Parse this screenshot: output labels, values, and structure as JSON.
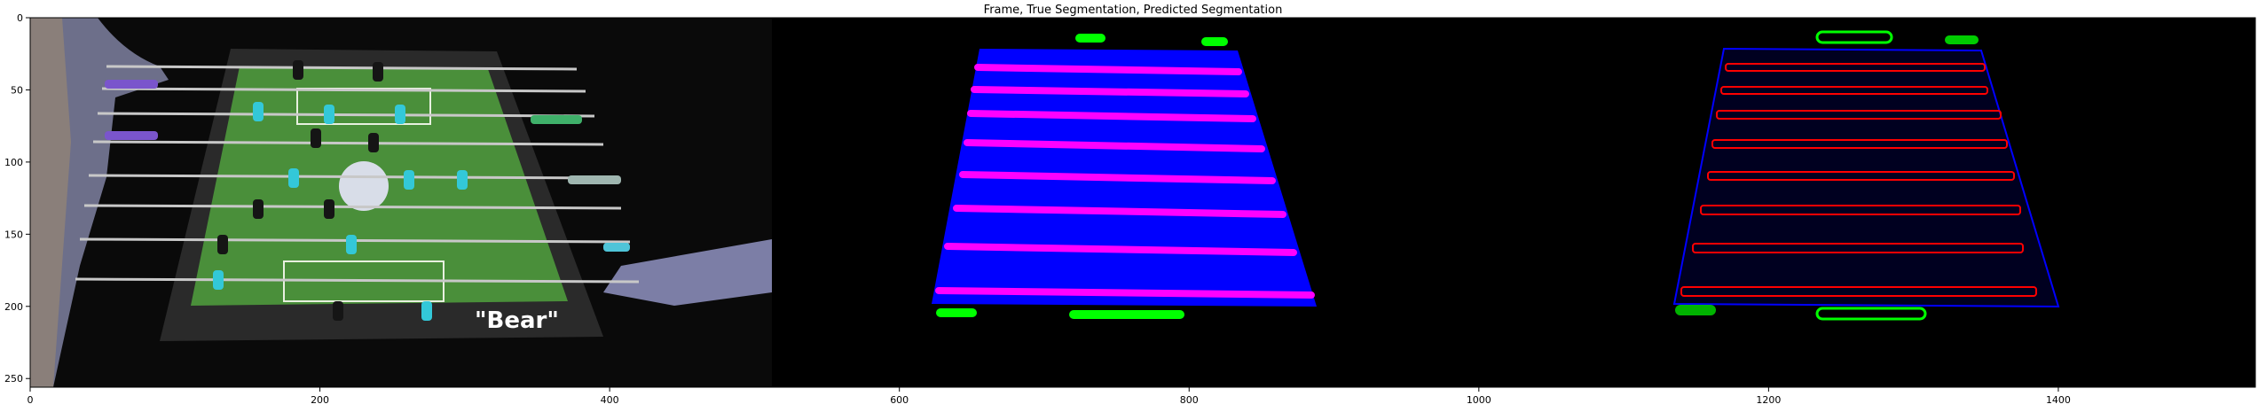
{
  "figure": {
    "title": "Frame, True Segmentation, Predicted Segmentation",
    "xticks": [
      "0",
      "200",
      "400",
      "600",
      "800",
      "1000",
      "1200",
      "1400"
    ],
    "yticks": [
      "0",
      "50",
      "100",
      "150",
      "200",
      "250"
    ],
    "xrange": [
      0,
      1536
    ],
    "yrange": [
      0,
      256
    ]
  },
  "frame_panel": {
    "table_logo": "\"Bear\""
  },
  "colors": {
    "background": "#000000",
    "table_mask": "#0000ff",
    "rod_mask": "#ff00ff",
    "handle_mask": "#00ff00",
    "predicted_rod": "#ff0000",
    "predicted_table_outline": "#0000ff",
    "field_green": "#4a8f3a",
    "player_cyan": "#33c8d8"
  },
  "icons": [
    "foosball-table-photo",
    "segmentation-mask",
    "prediction-mask"
  ]
}
